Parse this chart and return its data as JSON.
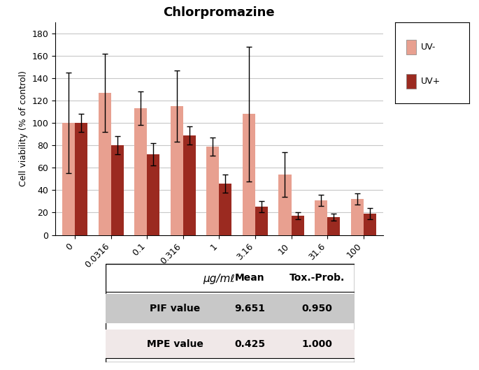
{
  "title": "Chlorpromazine",
  "xlabel": "μg/mℓ",
  "ylabel": "Cell viability (% of control)",
  "categories": [
    "0",
    "0.0316",
    "0.1",
    "0.316",
    "1",
    "3.16",
    "10",
    "31.6",
    "100"
  ],
  "uv_minus_values": [
    100,
    127,
    113,
    115,
    79,
    108,
    54,
    31,
    32
  ],
  "uv_plus_values": [
    100,
    80,
    72,
    89,
    46,
    25,
    17,
    16,
    19
  ],
  "uv_minus_errors": [
    45,
    35,
    15,
    32,
    8,
    60,
    20,
    5,
    5
  ],
  "uv_plus_errors": [
    8,
    8,
    10,
    8,
    8,
    5,
    3,
    3,
    5
  ],
  "uv_minus_color": "#e8a090",
  "uv_plus_color": "#9b2a20",
  "ylim": [
    0,
    190
  ],
  "yticks": [
    0,
    20,
    40,
    60,
    80,
    100,
    120,
    140,
    160,
    180
  ],
  "bar_width": 0.35,
  "legend_uv_minus": "UV-",
  "legend_uv_plus": "UV+",
  "table_rows": [
    "PIF value",
    "MPE value"
  ],
  "table_col_headers": [
    "Mean",
    "Tox.-Prob."
  ],
  "table_values": [
    [
      "9.651",
      "0.950"
    ],
    [
      "0.425",
      "1.000"
    ]
  ],
  "table_row_colors": [
    "#c8c8c8",
    "#f0e8e8"
  ],
  "background_color": "#ffffff",
  "grid_color": "#c8c8c8",
  "title_fontsize": 13,
  "axis_fontsize": 9,
  "ylabel_fontsize": 9,
  "xlabel_fontsize": 11
}
